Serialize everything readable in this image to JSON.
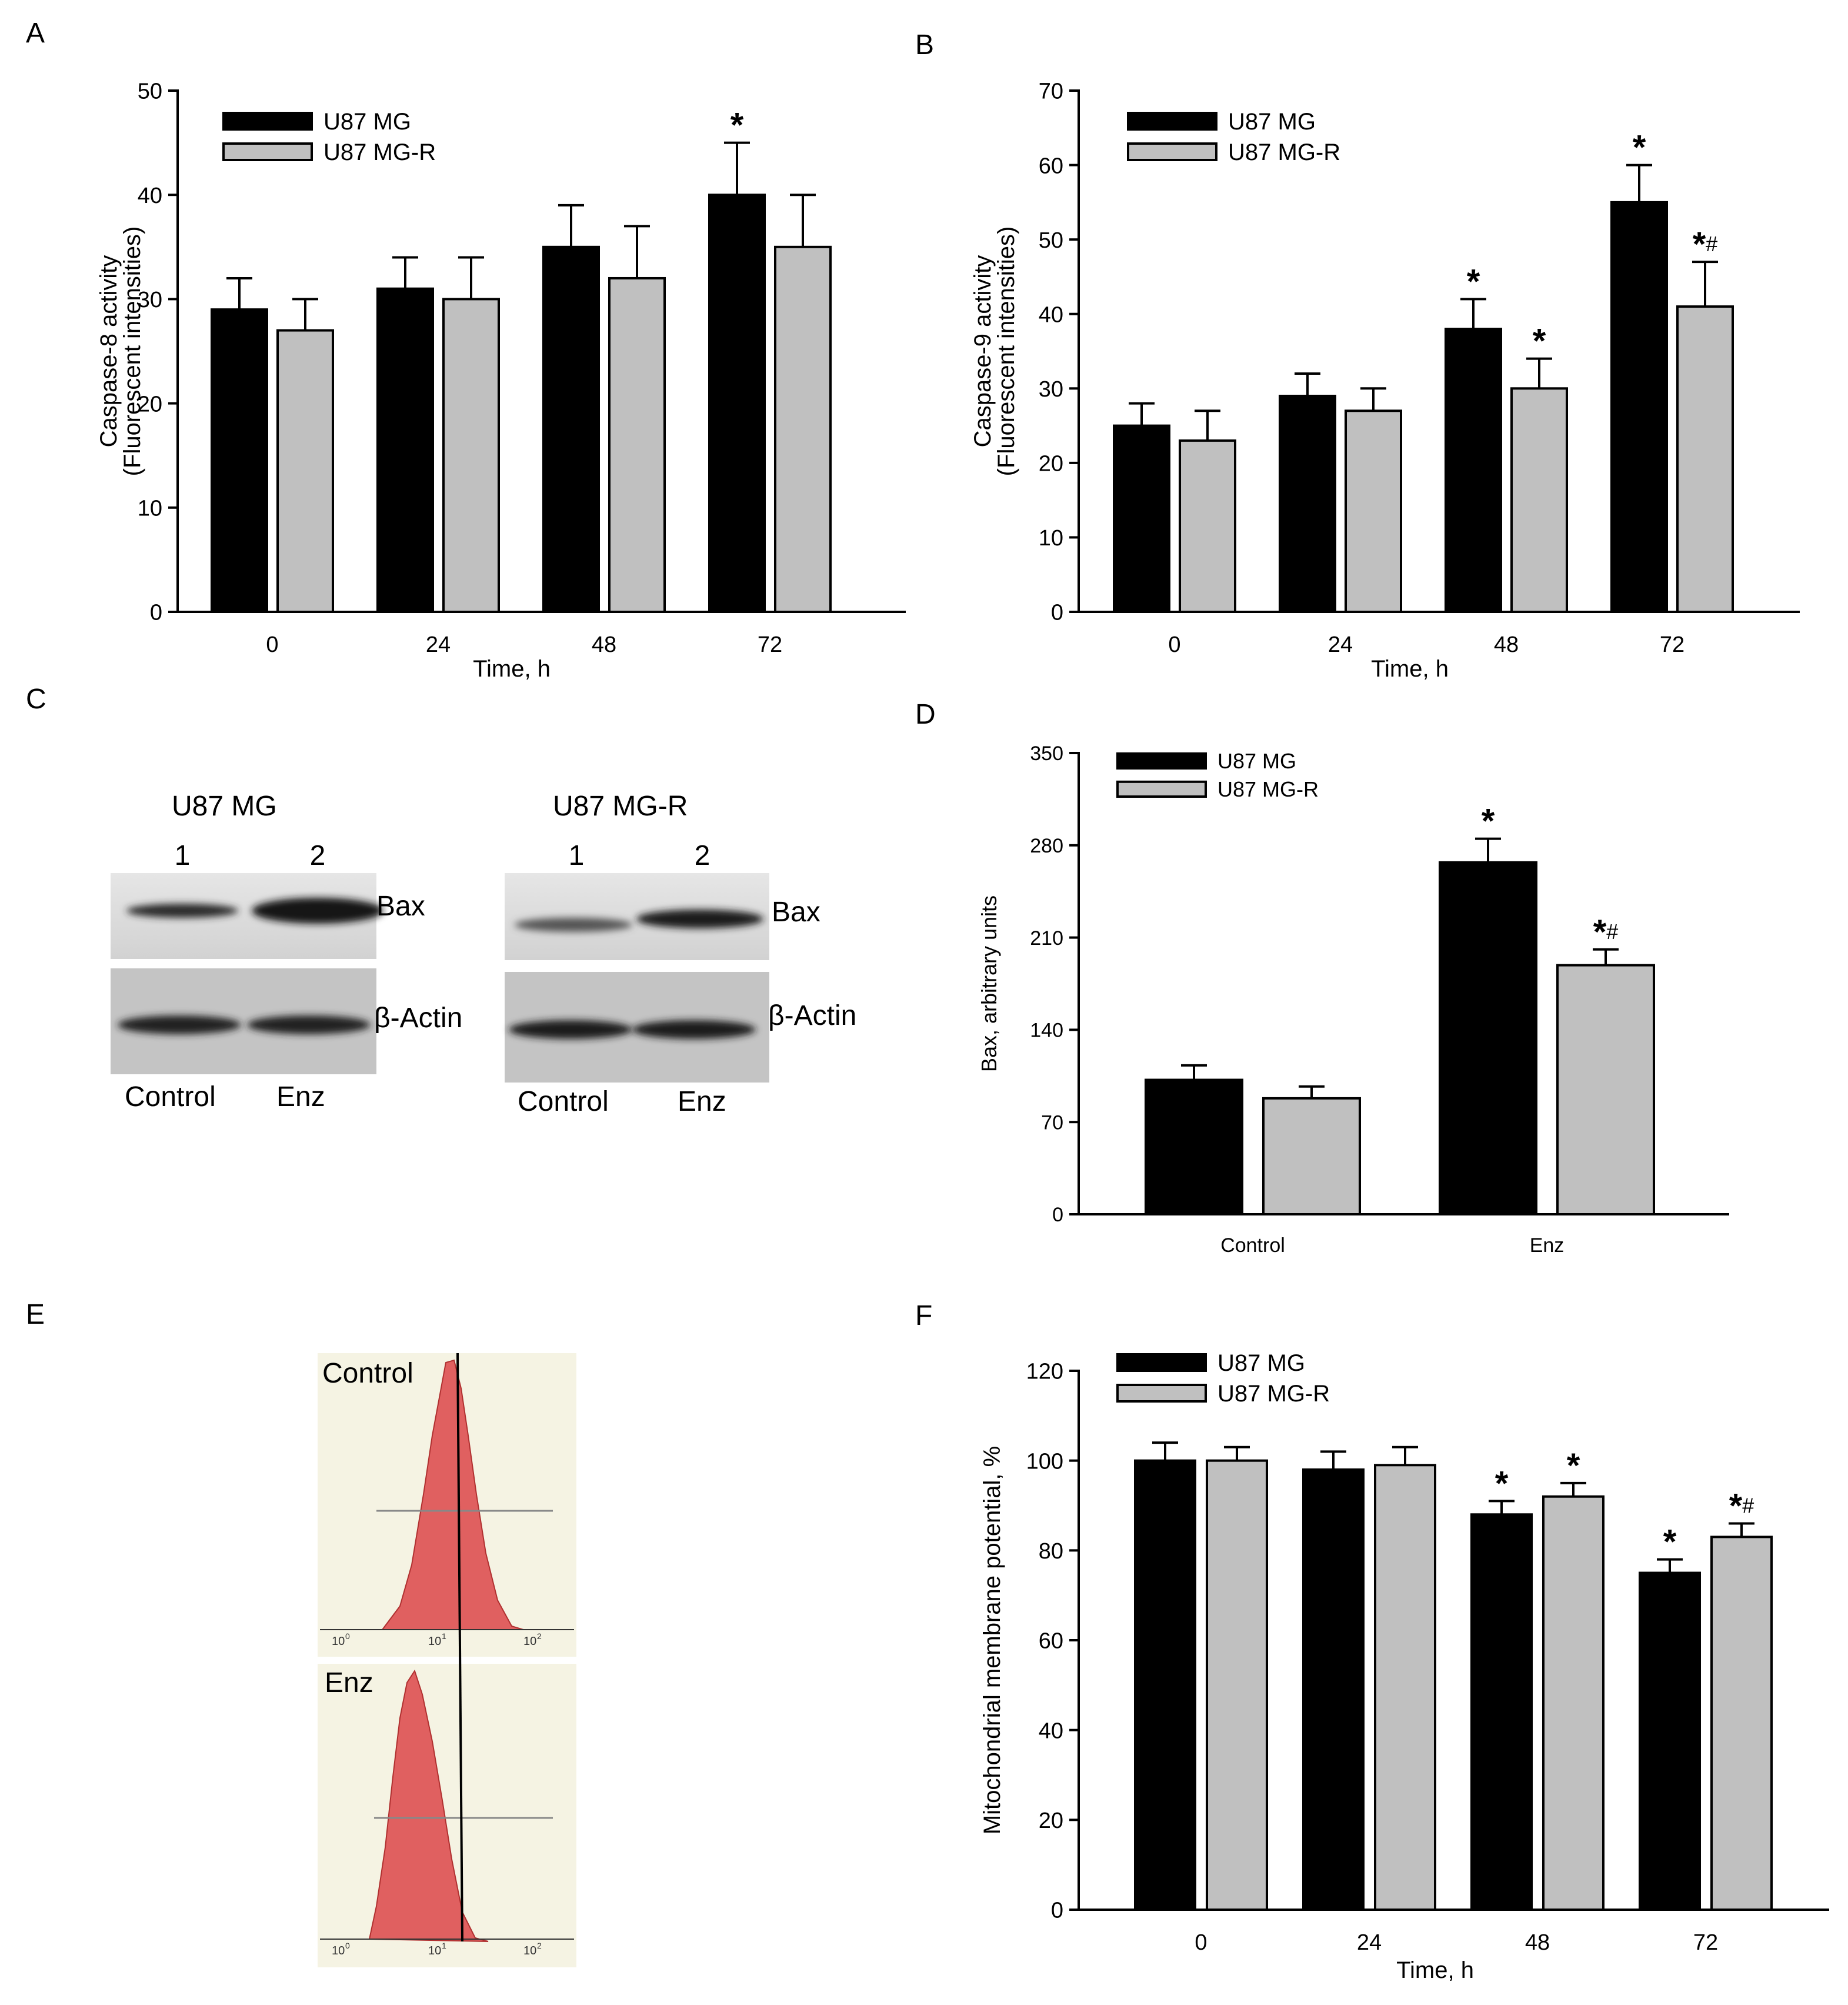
{
  "panel_labels": {
    "a": "A",
    "b": "B",
    "c": "C",
    "d": "D",
    "e": "E",
    "f": "F"
  },
  "colors": {
    "series1": "#000000",
    "series2": "#c0c0c0",
    "blot_bg": "#dcdcdc",
    "blot_band": "#222222",
    "flow_fill": "#e06060",
    "flow_bg": "#f7f5e6"
  },
  "blots": {
    "left": {
      "title": "U87 MG",
      "lanes": [
        "1",
        "2"
      ],
      "conditions": [
        "Control",
        "Enz"
      ],
      "proteins": [
        "Bax",
        "β-Actin"
      ]
    },
    "right": {
      "title": "U87 MG-R",
      "lanes": [
        "1",
        "2"
      ],
      "conditions": [
        "Control",
        "Enz"
      ],
      "proteins": [
        "Bax",
        "β-Actin"
      ]
    }
  },
  "flow": {
    "top_label": "Control",
    "bottom_label": "Enz",
    "ticks": [
      "10",
      "10",
      "10"
    ],
    "exponents": [
      "0",
      "1",
      "2"
    ]
  },
  "chart_data": [
    {
      "id": "A",
      "type": "bar",
      "categories": [
        "0",
        "24",
        "48",
        "72"
      ],
      "series": [
        {
          "name": "U87 MG",
          "values": [
            29,
            31,
            35,
            40
          ],
          "errors": [
            3,
            3,
            4,
            5
          ],
          "marks": [
            "",
            "",
            "",
            "*"
          ]
        },
        {
          "name": "U87 MG-R",
          "values": [
            27,
            30,
            32,
            35
          ],
          "errors": [
            3,
            4,
            5,
            5
          ],
          "marks": [
            "",
            "",
            "",
            ""
          ]
        }
      ],
      "title": "",
      "xlabel": "Time, h",
      "ylabel": "Caspase-8 activity",
      "ylabel2": "(Fluorescent intensities)",
      "ylim": [
        0,
        50
      ],
      "yticks": [
        0,
        10,
        20,
        30,
        40,
        50
      ],
      "legend": "top-left"
    },
    {
      "id": "B",
      "type": "bar",
      "categories": [
        "0",
        "24",
        "48",
        "72"
      ],
      "series": [
        {
          "name": "U87 MG",
          "values": [
            25,
            29,
            38,
            55
          ],
          "errors": [
            3,
            3,
            4,
            5
          ],
          "marks": [
            "",
            "",
            "*",
            "*"
          ]
        },
        {
          "name": "U87 MG-R",
          "values": [
            23,
            27,
            30,
            41
          ],
          "errors": [
            4,
            3,
            4,
            6
          ],
          "marks": [
            "",
            "",
            "*",
            "*#"
          ]
        }
      ],
      "title": "",
      "xlabel": "Time, h",
      "ylabel": "Caspase-9 activity",
      "ylabel2": "(Fluorescent intensities)",
      "ylim": [
        0,
        70
      ],
      "yticks": [
        0,
        10,
        20,
        30,
        40,
        50,
        60,
        70
      ],
      "legend": "top-left"
    },
    {
      "id": "D",
      "type": "bar",
      "categories": [
        "Control",
        "Enz"
      ],
      "series": [
        {
          "name": "U87 MG",
          "values": [
            102,
            267
          ],
          "errors": [
            11,
            18
          ],
          "marks": [
            "",
            "*"
          ]
        },
        {
          "name": "U87 MG-R",
          "values": [
            88,
            189
          ],
          "errors": [
            9,
            12
          ],
          "marks": [
            "",
            "*#"
          ]
        }
      ],
      "title": "",
      "xlabel": "",
      "ylabel": "Bax, arbitrary units",
      "ylabel2": "",
      "ylim": [
        0,
        350
      ],
      "yticks": [
        0,
        70,
        140,
        210,
        280,
        350
      ],
      "legend": "top-left"
    },
    {
      "id": "F",
      "type": "bar",
      "categories": [
        "0",
        "24",
        "48",
        "72"
      ],
      "series": [
        {
          "name": "U87 MG",
          "values": [
            100,
            98,
            88,
            75
          ],
          "errors": [
            4,
            4,
            3,
            3
          ],
          "marks": [
            "",
            "",
            "*",
            "*"
          ]
        },
        {
          "name": "U87 MG-R",
          "values": [
            100,
            99,
            92,
            83
          ],
          "errors": [
            3,
            4,
            3,
            3
          ],
          "marks": [
            "",
            "",
            "*",
            "*#"
          ]
        }
      ],
      "title": "",
      "xlabel": "Time, h",
      "ylabel": "Mitochondrial membrane potential, %",
      "ylabel2": "",
      "ylim": [
        0,
        120
      ],
      "yticks": [
        0,
        20,
        40,
        60,
        80,
        100,
        120
      ],
      "legend": "top-left"
    }
  ]
}
